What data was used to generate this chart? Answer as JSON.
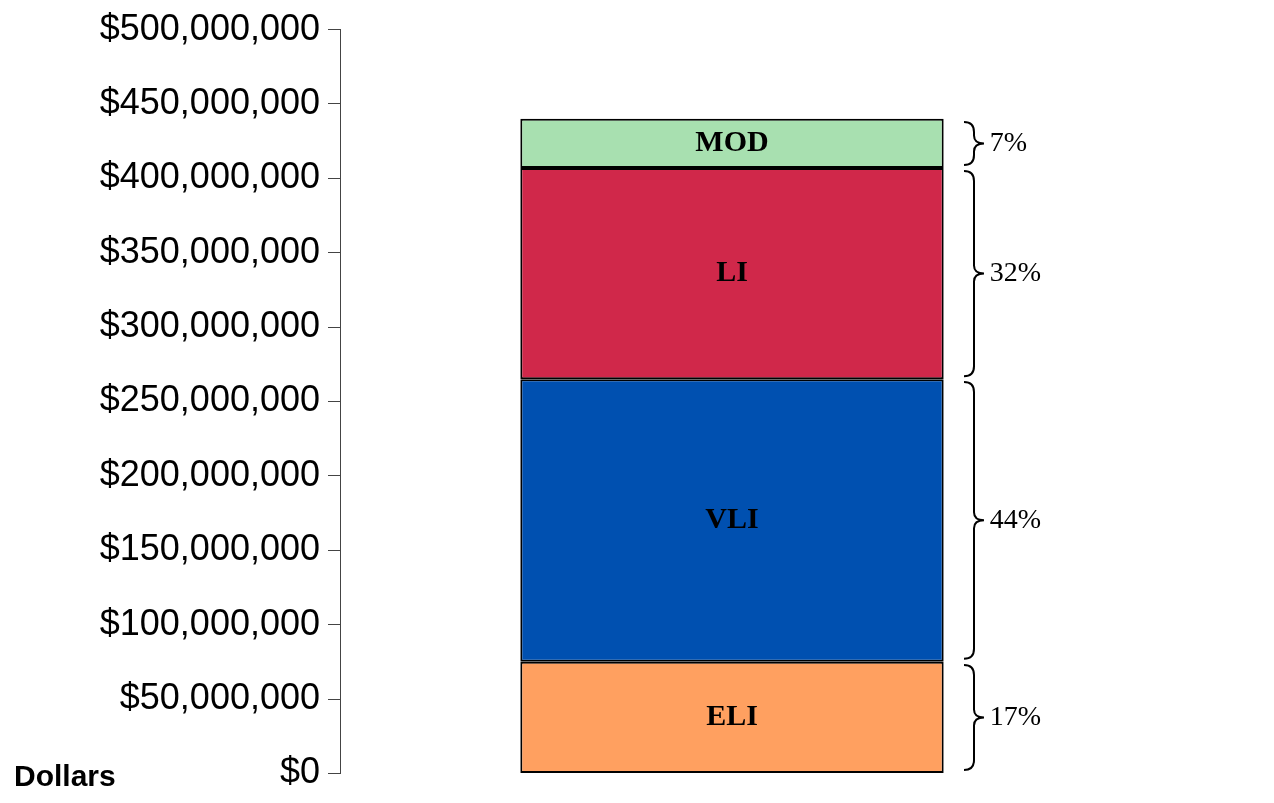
{
  "chart_data": {
    "type": "bar",
    "stacked": true,
    "categories": [
      null
    ],
    "ylabel": "Dollars",
    "ylim": [
      0,
      500000000
    ],
    "yticks": [
      {
        "value": 0,
        "label": "$0"
      },
      {
        "value": 50000000,
        "label": "$50,000,000"
      },
      {
        "value": 100000000,
        "label": "$100,000,000"
      },
      {
        "value": 150000000,
        "label": "$150,000,000"
      },
      {
        "value": 200000000,
        "label": "$200,000,000"
      },
      {
        "value": 250000000,
        "label": "$250,000,000"
      },
      {
        "value": 300000000,
        "label": "$300,000,000"
      },
      {
        "value": 350000000,
        "label": "$350,000,000"
      },
      {
        "value": 400000000,
        "label": "$400,000,000"
      },
      {
        "value": 450000000,
        "label": "$450,000,000"
      },
      {
        "value": 500000000,
        "label": "$500,000,000"
      }
    ],
    "series": [
      {
        "name": "ELI",
        "color": "#ffa060",
        "values": [
          75000000
        ]
      },
      {
        "name": "VLI",
        "color": "#0050b0",
        "values": [
          190000000
        ]
      },
      {
        "name": "LI",
        "color": "#d0284a",
        "values": [
          142000000
        ]
      },
      {
        "name": "MOD",
        "color": "#a8e0b0",
        "values": [
          33000000
        ]
      }
    ],
    "annotations": [
      "17%",
      "44%",
      "32%",
      "7%"
    ],
    "grid": false,
    "legend": false
  }
}
